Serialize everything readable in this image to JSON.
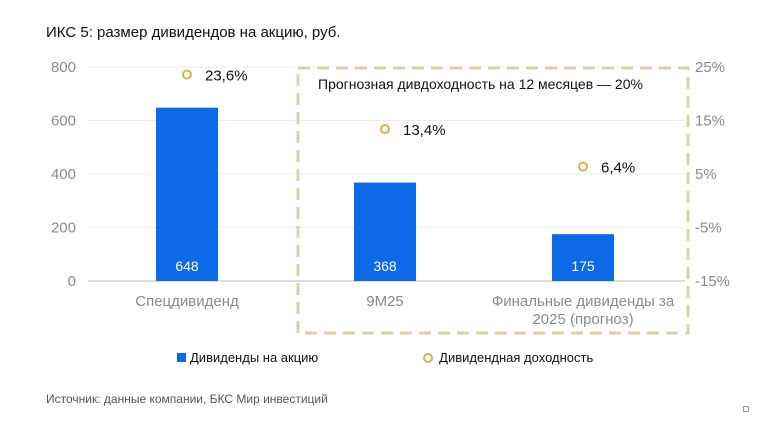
{
  "chart_data": {
    "type": "bar",
    "title": "ИКС 5: размер дивидендов на акцию, руб.",
    "categories": [
      "Спецдивиденд",
      "9М25",
      "Финальные дивиденды за 2025 (прогноз)"
    ],
    "series": [
      {
        "name": "Дивиденды на акцию",
        "type": "bar",
        "axis": "left",
        "values": [
          648,
          368,
          175
        ],
        "labels": [
          "648",
          "368",
          "175"
        ],
        "color": "#0d6ae6"
      },
      {
        "name": "Дивидендная доходность",
        "type": "scatter",
        "axis": "right",
        "values": [
          23.6,
          13.4,
          6.4
        ],
        "labels": [
          "23,6%",
          "13,4%",
          "6,4%"
        ],
        "color": "#d9b24c"
      }
    ],
    "ylim": [
      0,
      800
    ],
    "yticks": [
      "0",
      "200",
      "400",
      "600",
      "800"
    ],
    "y2lim": [
      -15,
      25
    ],
    "y2ticks": [
      "-15%",
      "-5%",
      "5%",
      "15%",
      "25%"
    ],
    "grid": true,
    "legend": "bottom",
    "annotation": "Прогнозная дивдоходность на 12 месяцев — 20%"
  },
  "source": "Источник: данные компании, БКС Мир инвестиций"
}
